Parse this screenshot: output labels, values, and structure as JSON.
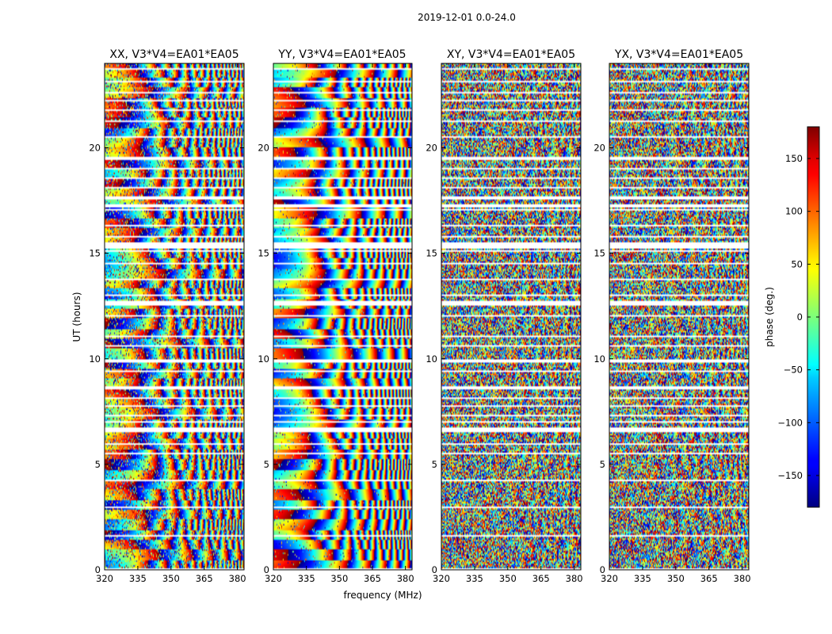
{
  "chart_data": {
    "type": "heatmap",
    "suptitle": "2019-12-01 0.0-24.0",
    "xlabel": "frequency (MHz)",
    "ylabel": "UT (hours)",
    "xlim": [
      320,
      383
    ],
    "ylim": [
      0,
      24
    ],
    "xticks": [
      "320",
      "335",
      "350",
      "365",
      "380"
    ],
    "yticks": [
      "0",
      "5",
      "10",
      "15",
      "20"
    ],
    "panels": [
      {
        "title": "XX, V3*V4=EA01*EA05",
        "fringe_strength": 0.85
      },
      {
        "title": "YY, V3*V4=EA01*EA05",
        "fringe_strength": 1.0
      },
      {
        "title": "XY, V3*V4=EA01*EA05",
        "fringe_strength": 0.35
      },
      {
        "title": "YX, V3*V4=EA01*EA05",
        "fringe_strength": 0.4
      }
    ],
    "flagged_time_ranges_hours": [
      [
        0.0,
        0.08
      ],
      [
        1.55,
        1.62
      ],
      [
        2.95,
        3.02
      ],
      [
        4.2,
        4.28
      ],
      [
        5.45,
        5.52
      ],
      [
        5.95,
        6.02
      ],
      [
        6.55,
        6.72
      ],
      [
        6.95,
        7.05
      ],
      [
        7.3,
        7.38
      ],
      [
        7.7,
        7.78
      ],
      [
        8.1,
        8.18
      ],
      [
        8.55,
        8.68
      ],
      [
        9.35,
        9.45
      ],
      [
        9.85,
        9.95
      ],
      [
        10.55,
        10.62
      ],
      [
        11.05,
        11.12
      ],
      [
        12.0,
        12.08
      ],
      [
        12.55,
        12.75
      ],
      [
        12.95,
        13.08
      ],
      [
        13.7,
        13.78
      ],
      [
        14.45,
        14.52
      ],
      [
        15.1,
        15.18
      ],
      [
        15.25,
        15.5
      ],
      [
        15.75,
        15.82
      ],
      [
        16.3,
        16.38
      ],
      [
        17.0,
        17.1
      ],
      [
        17.15,
        17.35
      ],
      [
        17.55,
        17.7
      ],
      [
        18.05,
        18.12
      ],
      [
        18.5,
        18.58
      ],
      [
        18.95,
        19.02
      ],
      [
        19.4,
        19.6
      ],
      [
        19.7,
        19.75
      ],
      [
        20.45,
        20.52
      ],
      [
        21.2,
        21.28
      ],
      [
        21.75,
        21.82
      ],
      [
        22.2,
        22.28
      ],
      [
        22.6,
        22.68
      ],
      [
        23.1,
        23.18
      ],
      [
        23.7,
        23.76
      ]
    ],
    "colorbar": {
      "label": "phase (deg.)",
      "min": -180,
      "max": 180,
      "ticks": [
        "150",
        "100",
        "50",
        "0",
        "−50",
        "−100",
        "−150"
      ],
      "tick_values": [
        150,
        100,
        50,
        0,
        -50,
        -100,
        -150
      ],
      "colormap": "jet"
    }
  }
}
